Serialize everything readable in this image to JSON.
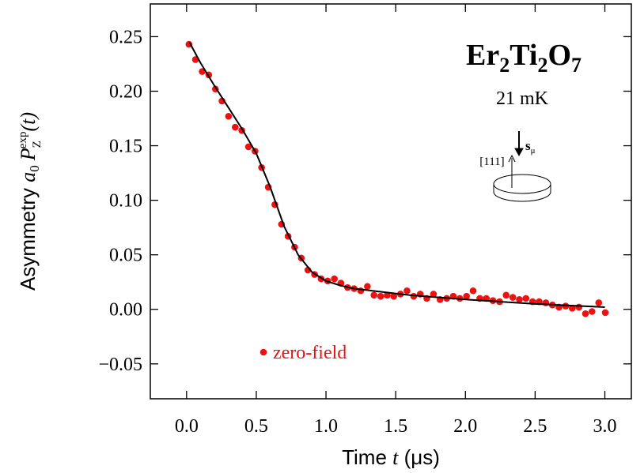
{
  "chart_data": {
    "type": "scatter",
    "title_parts": [
      "Er",
      "2",
      "Ti",
      "2",
      "O",
      "7"
    ],
    "subtitle": "21 mK",
    "diagram_labels": {
      "axis": "[111]",
      "spin": "s",
      "spin_sub": "μ"
    },
    "x_label_parts": [
      "Time ",
      "t",
      " (μs)"
    ],
    "y_label_parts": [
      "Asymmetry ",
      "a",
      "0",
      "P",
      "Z",
      "exp",
      "(t)"
    ],
    "xlim": [
      -0.26,
      3.19
    ],
    "ylim": [
      -0.082,
      0.28
    ],
    "xticks": [
      {
        "value": 0,
        "label": "0.0"
      },
      0.5,
      {
        "value": 1,
        "label": "1.0"
      },
      1.5,
      {
        "value": 2,
        "label": "2.0"
      },
      2.5,
      {
        "value": 3,
        "label": "3.0"
      }
    ],
    "yticks": [
      {
        "value": -0.05,
        "label": "−0.05"
      },
      {
        "value": 0,
        "label": "0.00"
      },
      0.05,
      {
        "value": 0.1,
        "label": "0.10"
      },
      0.15,
      {
        "value": 0.2,
        "label": "0.20"
      },
      0.25
    ],
    "series": [
      {
        "name": "zero-field",
        "color": "#ee1111",
        "x": [
          0.017,
          0.064,
          0.112,
          0.159,
          0.207,
          0.254,
          0.301,
          0.349,
          0.396,
          0.444,
          0.491,
          0.538,
          0.586,
          0.633,
          0.681,
          0.728,
          0.775,
          0.823,
          0.87,
          0.918,
          0.965,
          1.012,
          1.06,
          1.107,
          1.155,
          1.202,
          1.249,
          1.297,
          1.344,
          1.392,
          1.439,
          1.486,
          1.534,
          1.581,
          1.629,
          1.676,
          1.723,
          1.771,
          1.818,
          1.866,
          1.913,
          1.96,
          2.008,
          2.055,
          2.103,
          2.15,
          2.197,
          2.245,
          2.292,
          2.34,
          2.387,
          2.434,
          2.482,
          2.529,
          2.577,
          2.624,
          2.671,
          2.719,
          2.766,
          2.814,
          2.861,
          2.908,
          2.956,
          3.003
        ],
        "values": [
          0.243,
          0.229,
          0.218,
          0.215,
          0.202,
          0.191,
          0.177,
          0.167,
          0.164,
          0.149,
          0.145,
          0.13,
          0.112,
          0.096,
          0.078,
          0.067,
          0.057,
          0.047,
          0.036,
          0.032,
          0.028,
          0.026,
          0.028,
          0.024,
          0.02,
          0.019,
          0.017,
          0.021,
          0.013,
          0.012,
          0.013,
          0.012,
          0.014,
          0.017,
          0.012,
          0.014,
          0.01,
          0.014,
          0.009,
          0.01,
          0.012,
          0.01,
          0.012,
          0.017,
          0.01,
          0.01,
          0.008,
          0.007,
          0.013,
          0.011,
          0.009,
          0.01,
          0.007,
          0.007,
          0.006,
          0.004,
          0.002,
          0.003,
          0.001,
          0.002,
          -0.004,
          -0.002,
          0.006,
          -0.003
        ]
      },
      {
        "type": "line",
        "color": "#000000",
        "x": [
          0.02,
          0.1,
          0.2,
          0.3,
          0.4,
          0.5,
          0.6,
          0.7,
          0.8,
          0.9,
          1.0,
          1.1,
          1.2,
          1.4,
          1.6,
          2.0,
          2.5,
          3.0
        ],
        "values": [
          0.245,
          0.226,
          0.205,
          0.185,
          0.165,
          0.143,
          0.112,
          0.076,
          0.05,
          0.034,
          0.026,
          0.022,
          0.019,
          0.016,
          0.013,
          0.009,
          0.005,
          0.002
        ]
      }
    ]
  }
}
